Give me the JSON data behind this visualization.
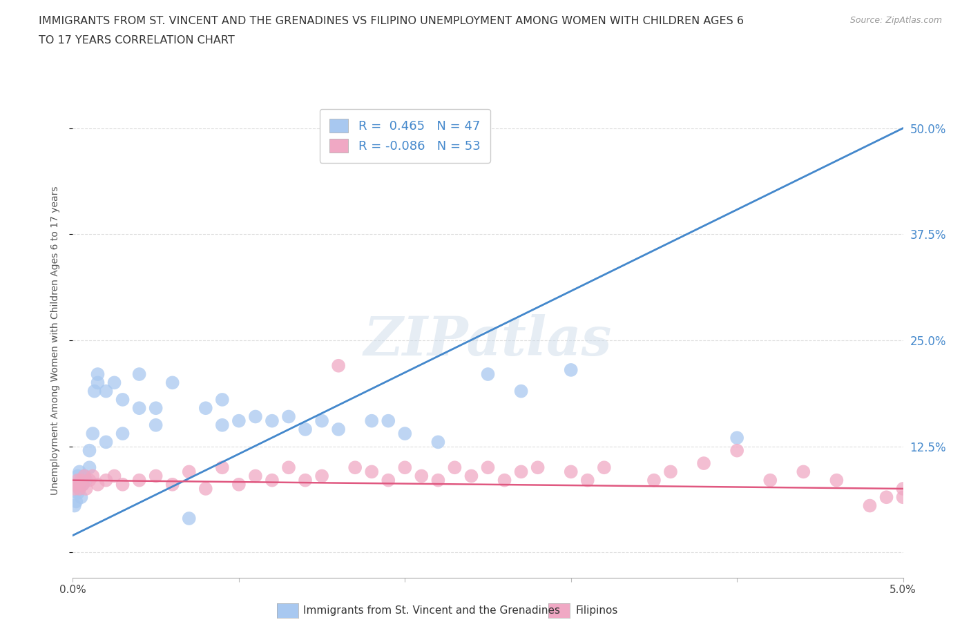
{
  "title_line1": "IMMIGRANTS FROM ST. VINCENT AND THE GRENADINES VS FILIPINO UNEMPLOYMENT AMONG WOMEN WITH CHILDREN AGES 6",
  "title_line2": "TO 17 YEARS CORRELATION CHART",
  "source": "Source: ZipAtlas.com",
  "ylabel": "Unemployment Among Women with Children Ages 6 to 17 years",
  "xlim": [
    0.0,
    0.05
  ],
  "ylim": [
    -0.03,
    0.53
  ],
  "yticks": [
    0.0,
    0.125,
    0.25,
    0.375,
    0.5
  ],
  "ytick_labels": [
    "",
    "12.5%",
    "25.0%",
    "37.5%",
    "50.0%"
  ],
  "xticks": [
    0.0,
    0.01,
    0.02,
    0.03,
    0.04,
    0.05
  ],
  "xtick_labels": [
    "0.0%",
    "",
    "",
    "",
    "",
    "5.0%"
  ],
  "legend1_r": "0.465",
  "legend1_n": "47",
  "legend2_r": "-0.086",
  "legend2_n": "53",
  "series1_color": "#a8c8f0",
  "series2_color": "#f0a8c4",
  "trendline1_color": "#4488cc",
  "trendline2_color": "#e05880",
  "watermark": "ZIPatlas",
  "background_color": "#ffffff",
  "grid_color": "#dddddd",
  "series1_x": [
    0.0001,
    0.0002,
    0.0002,
    0.0003,
    0.0003,
    0.0004,
    0.0004,
    0.0005,
    0.0005,
    0.0006,
    0.0007,
    0.0008,
    0.001,
    0.001,
    0.0012,
    0.0013,
    0.0015,
    0.0015,
    0.002,
    0.002,
    0.0025,
    0.003,
    0.003,
    0.004,
    0.004,
    0.005,
    0.005,
    0.006,
    0.007,
    0.008,
    0.009,
    0.009,
    0.01,
    0.011,
    0.012,
    0.013,
    0.014,
    0.015,
    0.016,
    0.018,
    0.019,
    0.02,
    0.022,
    0.025,
    0.027,
    0.03,
    0.04
  ],
  "series1_y": [
    0.055,
    0.06,
    0.08,
    0.07,
    0.09,
    0.075,
    0.095,
    0.065,
    0.085,
    0.08,
    0.09,
    0.085,
    0.1,
    0.12,
    0.14,
    0.19,
    0.2,
    0.21,
    0.13,
    0.19,
    0.2,
    0.14,
    0.18,
    0.17,
    0.21,
    0.15,
    0.17,
    0.2,
    0.04,
    0.17,
    0.15,
    0.18,
    0.155,
    0.16,
    0.155,
    0.16,
    0.145,
    0.155,
    0.145,
    0.155,
    0.155,
    0.14,
    0.13,
    0.21,
    0.19,
    0.215,
    0.135
  ],
  "series2_x": [
    0.0001,
    0.0002,
    0.0003,
    0.0004,
    0.0005,
    0.0006,
    0.0007,
    0.0008,
    0.001,
    0.0012,
    0.0015,
    0.002,
    0.0025,
    0.003,
    0.004,
    0.005,
    0.006,
    0.007,
    0.008,
    0.009,
    0.01,
    0.011,
    0.012,
    0.013,
    0.014,
    0.015,
    0.016,
    0.017,
    0.018,
    0.019,
    0.02,
    0.021,
    0.022,
    0.023,
    0.024,
    0.025,
    0.026,
    0.027,
    0.028,
    0.03,
    0.031,
    0.032,
    0.035,
    0.036,
    0.038,
    0.04,
    0.042,
    0.044,
    0.046,
    0.048,
    0.049,
    0.05,
    0.05
  ],
  "series2_y": [
    0.075,
    0.08,
    0.085,
    0.075,
    0.085,
    0.08,
    0.09,
    0.075,
    0.085,
    0.09,
    0.08,
    0.085,
    0.09,
    0.08,
    0.085,
    0.09,
    0.08,
    0.095,
    0.075,
    0.1,
    0.08,
    0.09,
    0.085,
    0.1,
    0.085,
    0.09,
    0.22,
    0.1,
    0.095,
    0.085,
    0.1,
    0.09,
    0.085,
    0.1,
    0.09,
    0.1,
    0.085,
    0.095,
    0.1,
    0.095,
    0.085,
    0.1,
    0.085,
    0.095,
    0.105,
    0.12,
    0.085,
    0.095,
    0.085,
    0.055,
    0.065,
    0.065,
    0.075
  ],
  "trendline1_x0": 0.0,
  "trendline1_y0": 0.02,
  "trendline1_x1": 0.05,
  "trendline1_y1": 0.5,
  "trendline2_x0": 0.0,
  "trendline2_y0": 0.085,
  "trendline2_x1": 0.05,
  "trendline2_y1": 0.075
}
